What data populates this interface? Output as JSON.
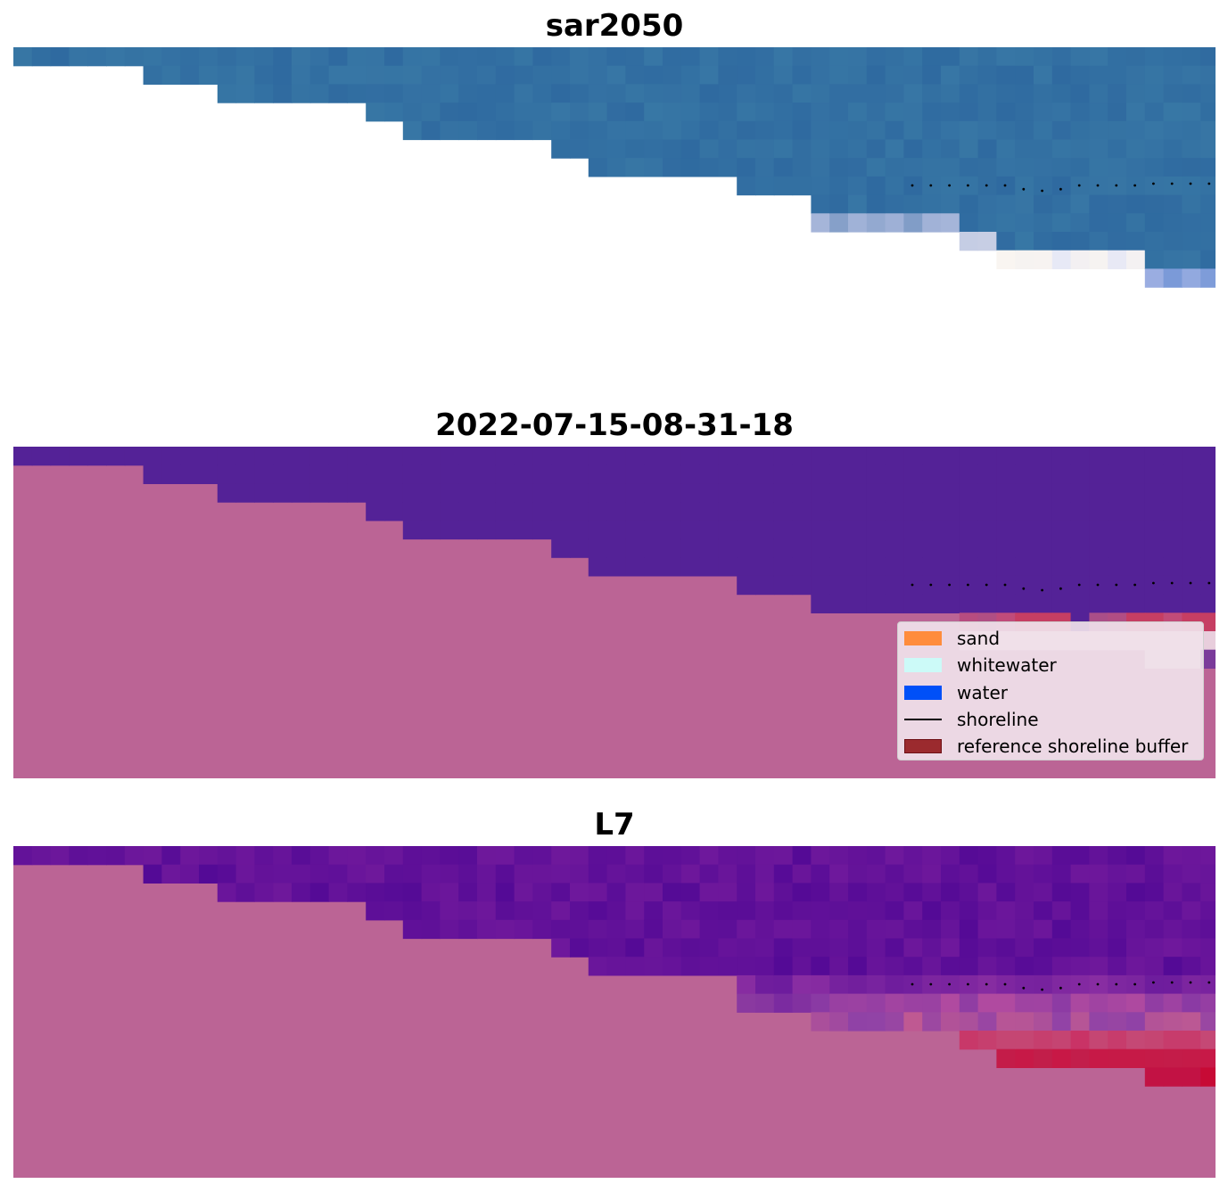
{
  "panels": [
    {
      "id": "rgb",
      "title": "sar2050"
    },
    {
      "id": "classified",
      "title": "2022-07-15-08-31-18"
    },
    {
      "id": "index",
      "title": "L7"
    }
  ],
  "legend": {
    "items": [
      {
        "label": "sand",
        "color": "#ff8c3c",
        "kind": "patch"
      },
      {
        "label": "whitewater",
        "color": "#ccfaf8",
        "kind": "patch"
      },
      {
        "label": "water",
        "color": "#0050f8",
        "kind": "patch"
      },
      {
        "label": "shoreline",
        "color": "#000000",
        "kind": "line"
      },
      {
        "label": "reference shoreline buffer",
        "color": "#9b2a2e",
        "kind": "patch"
      }
    ]
  },
  "colors": {
    "land": "#bb6495",
    "water_class": "#542297",
    "rgb_water": "#2f6aa0",
    "index_water": "#5c0f98",
    "buffer": "#c5375a"
  }
}
